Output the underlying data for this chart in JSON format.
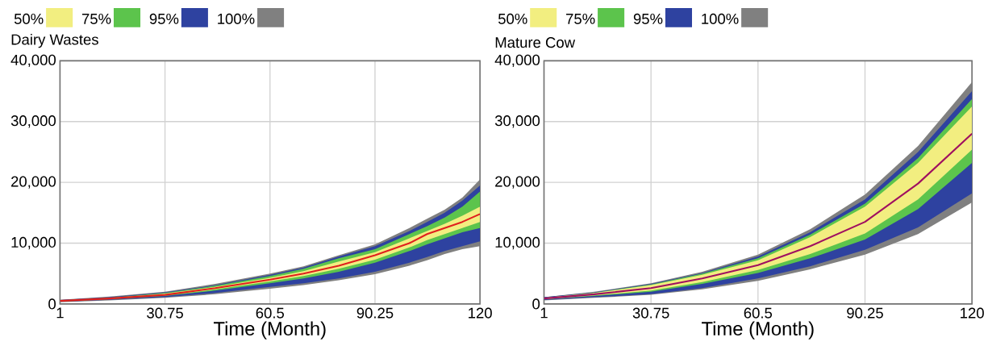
{
  "chart_data": [
    {
      "type": "line",
      "title": "Dairy Wastes",
      "xlabel": "Time (Month)",
      "xlim": [
        1,
        120
      ],
      "xticks": [
        1,
        30.75,
        60.5,
        90.25,
        120
      ],
      "ylim": [
        0,
        40000
      ],
      "yticks": [
        0,
        {
          "value": 10000,
          "label": "10,000"
        },
        {
          "value": 20000,
          "label": "20,000"
        },
        {
          "value": 30000,
          "label": "30,000"
        },
        {
          "value": 40000,
          "label": "40,000"
        }
      ],
      "grid": true,
      "legend": "top left",
      "x": [
        1,
        15,
        30.75,
        45,
        60.5,
        70,
        80,
        90.25,
        100,
        105,
        110,
        115,
        120
      ],
      "series": [
        {
          "name": "50%",
          "type": "area",
          "color": "#f2ee80",
          "values": [
            null,
            null,
            null,
            null,
            null,
            null,
            null,
            null,
            null,
            null,
            null,
            null,
            null
          ],
          "lower": [
            450,
            850,
            1400,
            2400,
            3700,
            4600,
            5800,
            7300,
            9300,
            10500,
            11500,
            12500,
            13500
          ],
          "upper": [
            550,
            950,
            1700,
            2800,
            4300,
            5400,
            7000,
            8500,
            10800,
            12000,
            13200,
            14500,
            16000
          ]
        },
        {
          "name": "75%",
          "type": "area",
          "color": "#5cc44c",
          "values": [
            null,
            null,
            null,
            null,
            null,
            null,
            null,
            null,
            null,
            null,
            null,
            null,
            null
          ],
          "lower": [
            400,
            800,
            1300,
            2200,
            3400,
            4200,
            5300,
            6800,
            8700,
            9800,
            10800,
            11800,
            12500
          ],
          "upper": [
            600,
            1000,
            1800,
            3000,
            4600,
            5800,
            7500,
            9000,
            11500,
            12800,
            14200,
            16000,
            18500
          ]
        },
        {
          "name": "95%",
          "type": "area",
          "color": "#2e42a0",
          "values": [
            null,
            null,
            null,
            null,
            null,
            null,
            null,
            null,
            null,
            null,
            null,
            null,
            null
          ],
          "lower": [
            350,
            700,
            1100,
            1800,
            2800,
            3400,
            4200,
            5300,
            6800,
            7700,
            8700,
            9500,
            10300
          ],
          "upper": [
            650,
            1100,
            1900,
            3100,
            4800,
            6000,
            7800,
            9500,
            12000,
            13500,
            15000,
            17000,
            19500
          ]
        },
        {
          "name": "100%",
          "type": "area",
          "color": "#808080",
          "values": [
            null,
            null,
            null,
            null,
            null,
            null,
            null,
            null,
            null,
            null,
            null,
            null,
            null
          ],
          "lower": [
            300,
            600,
            1000,
            1600,
            2500,
            3100,
            3900,
            4900,
            6300,
            7200,
            8200,
            9000,
            9500
          ],
          "upper": [
            700,
            1200,
            2000,
            3300,
            5000,
            6200,
            8000,
            9800,
            12500,
            14000,
            15500,
            17500,
            20500
          ]
        },
        {
          "color": "#e0201e",
          "values": [
            500,
            900,
            1500,
            2600,
            4000,
            5000,
            6300,
            8000,
            10000,
            11500,
            12500,
            13500,
            14800
          ]
        }
      ]
    },
    {
      "type": "line",
      "title": "Mature Cow",
      "xlabel": "Time (Month)",
      "xlim": [
        1,
        120
      ],
      "xticks": [
        1,
        30.75,
        60.5,
        90.25,
        120
      ],
      "ylim": [
        0,
        40000
      ],
      "yticks": [
        0,
        {
          "value": 10000,
          "label": "10,000"
        },
        {
          "value": 20000,
          "label": "20,000"
        },
        {
          "value": 30000,
          "label": "30,000"
        },
        {
          "value": 40000,
          "label": "40,000"
        }
      ],
      "grid": true,
      "legend": "top left",
      "x": [
        1,
        15,
        30.75,
        45,
        60.5,
        75,
        90.25,
        105,
        120
      ],
      "series": [
        {
          "name": "50%",
          "type": "area",
          "color": "#f2ee80",
          "values": [
            null,
            null,
            null,
            null,
            null,
            null,
            null,
            null,
            null
          ],
          "lower": [
            800,
            1400,
            2200,
            3600,
            5600,
            8200,
            11600,
            17200,
            25400
          ],
          "upper": [
            1000,
            1800,
            3100,
            4800,
            7200,
            11000,
            16000,
            23200,
            32500
          ]
        },
        {
          "name": "75%",
          "type": "area",
          "color": "#5cc44c",
          "values": [
            null,
            null,
            null,
            null,
            null,
            null,
            null,
            null,
            null
          ],
          "lower": [
            750,
            1300,
            2000,
            3300,
            5100,
            7500,
            10600,
            15600,
            23200
          ],
          "upper": [
            1000,
            1850,
            3200,
            5000,
            7500,
            11400,
            16500,
            24000,
            33700
          ]
        },
        {
          "name": "95%",
          "type": "area",
          "color": "#2e42a0",
          "values": [
            null,
            null,
            null,
            null,
            null,
            null,
            null,
            null,
            null
          ],
          "lower": [
            650,
            1100,
            1600,
            2600,
            4200,
            6200,
            8900,
            12600,
            18200
          ],
          "upper": [
            1100,
            1900,
            3300,
            5100,
            7800,
            11800,
            17200,
            25000,
            35000
          ]
        },
        {
          "name": "100%",
          "type": "area",
          "color": "#808080",
          "values": [
            null,
            null,
            null,
            null,
            null,
            null,
            null,
            null,
            null
          ],
          "lower": [
            600,
            1000,
            1500,
            2400,
            3800,
            5700,
            8100,
            11500,
            16700
          ],
          "upper": [
            1100,
            2000,
            3400,
            5300,
            8100,
            12300,
            18000,
            26000,
            36500
          ]
        },
        {
          "color": "#a01060",
          "values": [
            900,
            1600,
            2600,
            4200,
            6400,
            9500,
            13500,
            19800,
            28000
          ]
        }
      ]
    }
  ]
}
